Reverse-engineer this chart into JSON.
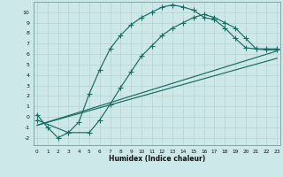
{
  "xlabel": "Humidex (Indice chaleur)",
  "bg_color": "#cde8e8",
  "grid_color": "#b8d0d0",
  "line_color": "#1a6b62",
  "yticks": [
    -2,
    -1,
    0,
    1,
    2,
    3,
    4,
    5,
    6,
    7,
    8,
    9,
    10
  ],
  "xticks": [
    0,
    1,
    2,
    3,
    4,
    5,
    6,
    7,
    8,
    9,
    10,
    11,
    12,
    13,
    14,
    15,
    16,
    17,
    18,
    19,
    20,
    21,
    22,
    23
  ],
  "xlim": [
    -0.3,
    23.3
  ],
  "ylim": [
    -2.7,
    11.0
  ],
  "line1_x": [
    0,
    1,
    2,
    3,
    4,
    5,
    6,
    7,
    8,
    9,
    10,
    11,
    12,
    13,
    14,
    15,
    16,
    17,
    18,
    19,
    20,
    21,
    22,
    23
  ],
  "line1_y": [
    0.2,
    -1.0,
    -2.0,
    -1.5,
    -0.5,
    2.2,
    4.5,
    6.5,
    7.8,
    8.8,
    9.5,
    10.0,
    10.5,
    10.7,
    10.5,
    10.2,
    9.5,
    9.3,
    8.5,
    7.5,
    6.6,
    6.5,
    6.5,
    6.5
  ],
  "line2_x": [
    0,
    3,
    5,
    6,
    7,
    8,
    9,
    10,
    11,
    12,
    13,
    14,
    15,
    16,
    17,
    18,
    19,
    20,
    21,
    22,
    23
  ],
  "line2_y": [
    -0.3,
    -1.5,
    -1.5,
    -0.3,
    1.2,
    2.8,
    4.3,
    5.8,
    6.8,
    7.8,
    8.5,
    9.0,
    9.5,
    9.8,
    9.5,
    9.0,
    8.5,
    7.5,
    6.5,
    6.4,
    6.4
  ],
  "line3_x": [
    0,
    23
  ],
  "line3_y": [
    -0.8,
    6.3
  ],
  "line4_x": [
    0,
    23
  ],
  "line4_y": [
    -0.8,
    5.6
  ]
}
